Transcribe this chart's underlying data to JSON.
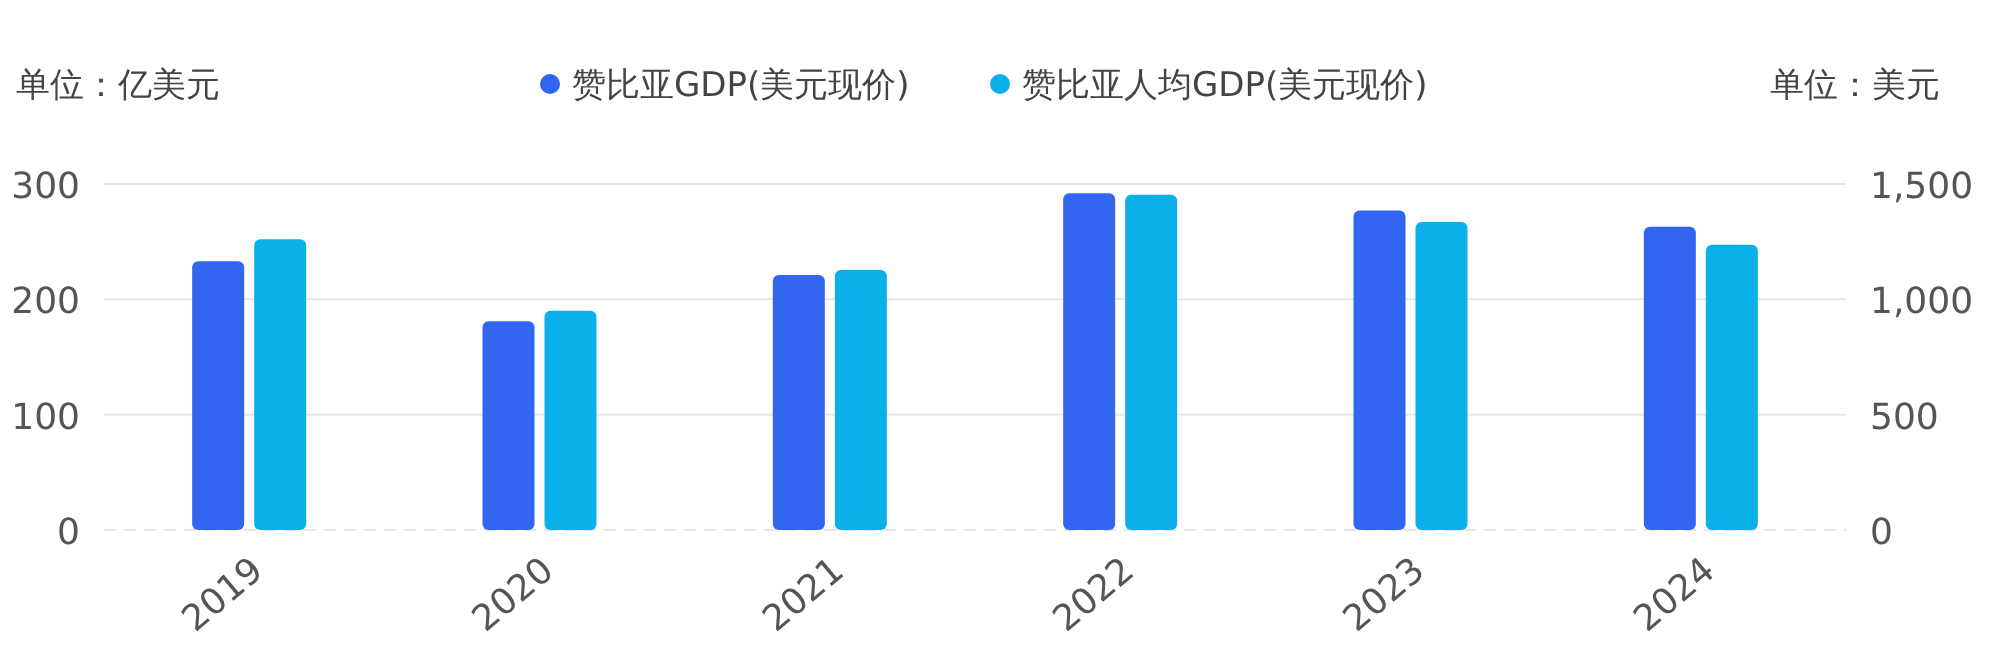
{
  "chart_data": {
    "type": "bar",
    "ylabel": "单位：亿美元",
    "y2label": "单位：美元",
    "categories": [
      "2019",
      "2020",
      "2021",
      "2022",
      "2023",
      "2024"
    ],
    "series": [
      {
        "name": "赞比亚GDP(美元现价)",
        "color": "#3366f0",
        "values": [
          233,
          181,
          221,
          292,
          277,
          263
        ]
      },
      {
        "name": "赞比亚人均GDP(美元现价)",
        "color": "#0bb0ea",
        "axis": "y2",
        "values": [
          1260,
          950,
          1127,
          1453,
          1335,
          1237
        ]
      }
    ],
    "ylim": [
      0,
      300
    ],
    "yticks": [
      0,
      100,
      200,
      300
    ],
    "y2lim": [
      0,
      1500
    ],
    "y2ticks": [
      0,
      500,
      {
        "value": 1000,
        "label": "1,000"
      },
      {
        "value": 1500,
        "label": "1,500"
      }
    ],
    "grid": "y",
    "legend": "top"
  }
}
